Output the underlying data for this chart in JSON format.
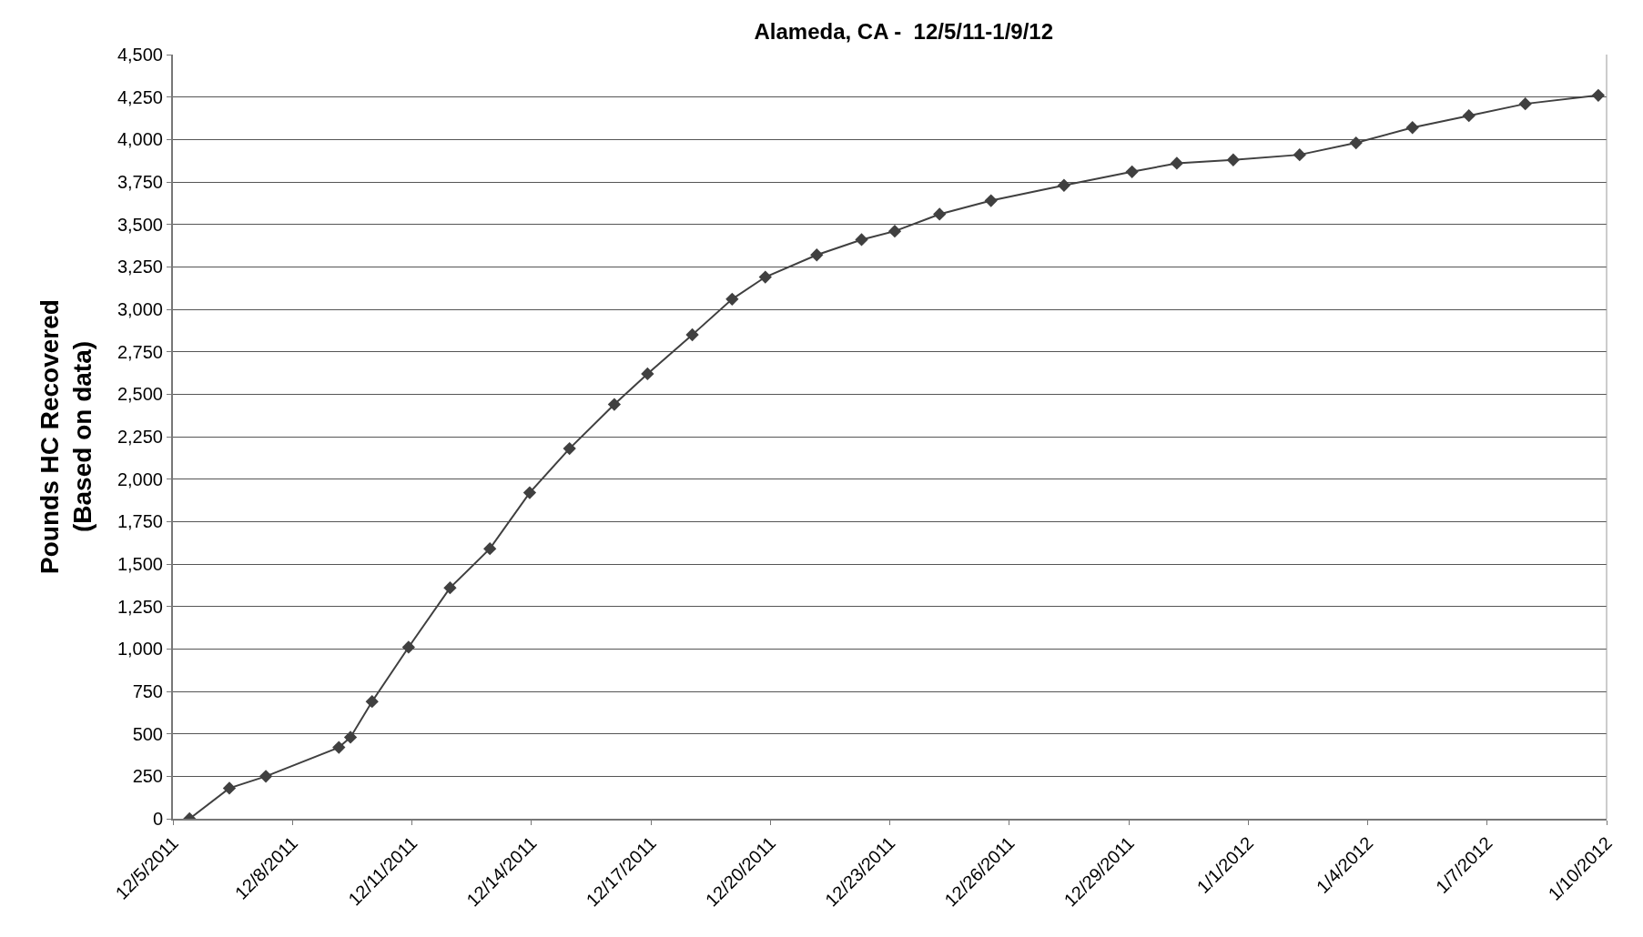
{
  "chart_data": {
    "type": "line",
    "title": "Alameda, CA -  12/5/11-1/9/12",
    "ylabel": "Pounds HC Recovered\n(Based on data)",
    "x": [
      "2011-12-05T10:00",
      "2011-12-06T10:00",
      "2011-12-07T08:00",
      "2011-12-09T04:00",
      "2011-12-09T11:00",
      "2011-12-10T00:00",
      "2011-12-10T22:00",
      "2011-12-11T23:00",
      "2011-12-12T23:00",
      "2011-12-13T23:00",
      "2011-12-14T23:00",
      "2011-12-16T02:00",
      "2011-12-16T22:00",
      "2011-12-18T01:00",
      "2011-12-19T01:00",
      "2011-12-19T21:00",
      "2011-12-21T04:00",
      "2011-12-22T07:00",
      "2011-12-23T03:00",
      "2011-12-24T06:00",
      "2011-12-25T13:00",
      "2011-12-27T09:00",
      "2011-12-29T02:00",
      "2011-12-30T05:00",
      "2011-12-31T15:00",
      "2012-01-02T07:00",
      "2012-01-03T17:00",
      "2012-01-05T03:00",
      "2012-01-06T13:00",
      "2012-01-07T23:00",
      "2012-01-09T19:00"
    ],
    "series": [
      {
        "color": "#404040",
        "values": [
          0,
          180,
          250,
          420,
          480,
          690,
          1010,
          1360,
          1590,
          1920,
          2180,
          2440,
          2620,
          2850,
          3060,
          3190,
          3320,
          3410,
          3460,
          3560,
          3640,
          3730,
          3810,
          3860,
          3880,
          3910,
          3980,
          4070,
          4140,
          4210,
          4260
        ]
      }
    ],
    "xlim": [
      "2011-12-05",
      "2012-01-10"
    ],
    "xticks": [
      {
        "value": "2011-12-05",
        "label": "12/5/2011"
      },
      {
        "value": "2011-12-08",
        "label": "12/8/2011"
      },
      {
        "value": "2011-12-11",
        "label": "12/11/2011"
      },
      {
        "value": "2011-12-14",
        "label": "12/14/2011"
      },
      {
        "value": "2011-12-17",
        "label": "12/17/2011"
      },
      {
        "value": "2011-12-20",
        "label": "12/20/2011"
      },
      {
        "value": "2011-12-23",
        "label": "12/23/2011"
      },
      {
        "value": "2011-12-26",
        "label": "12/26/2011"
      },
      {
        "value": "2011-12-29",
        "label": "12/29/2011"
      },
      {
        "value": "2012-01-01",
        "label": "1/1/2012"
      },
      {
        "value": "2012-01-04",
        "label": "1/4/2012"
      },
      {
        "value": "2012-01-07",
        "label": "1/7/2012"
      },
      {
        "value": "2012-01-10",
        "label": "1/10/2012"
      }
    ],
    "ylim": [
      0,
      4500
    ],
    "yticks": [
      0,
      250,
      500,
      750,
      {
        "value": 1000,
        "label": "1,000"
      },
      {
        "value": 1250,
        "label": "1,250"
      },
      {
        "value": 1500,
        "label": "1,500"
      },
      {
        "value": 1750,
        "label": "1,750"
      },
      {
        "value": 2000,
        "label": "2,000"
      },
      {
        "value": 2250,
        "label": "2,250"
      },
      {
        "value": 2500,
        "label": "2,500"
      },
      {
        "value": 2750,
        "label": "2,750"
      },
      {
        "value": 3000,
        "label": "3,000"
      },
      {
        "value": 3250,
        "label": "3,250"
      },
      {
        "value": 3500,
        "label": "3,500"
      },
      {
        "value": 3750,
        "label": "3,750"
      },
      {
        "value": 4000,
        "label": "4,000"
      },
      {
        "value": 4250,
        "label": "4,250"
      },
      {
        "value": 4500,
        "label": "4,500"
      }
    ],
    "grid": "y",
    "marker": "diamond",
    "line_style": "solid"
  }
}
